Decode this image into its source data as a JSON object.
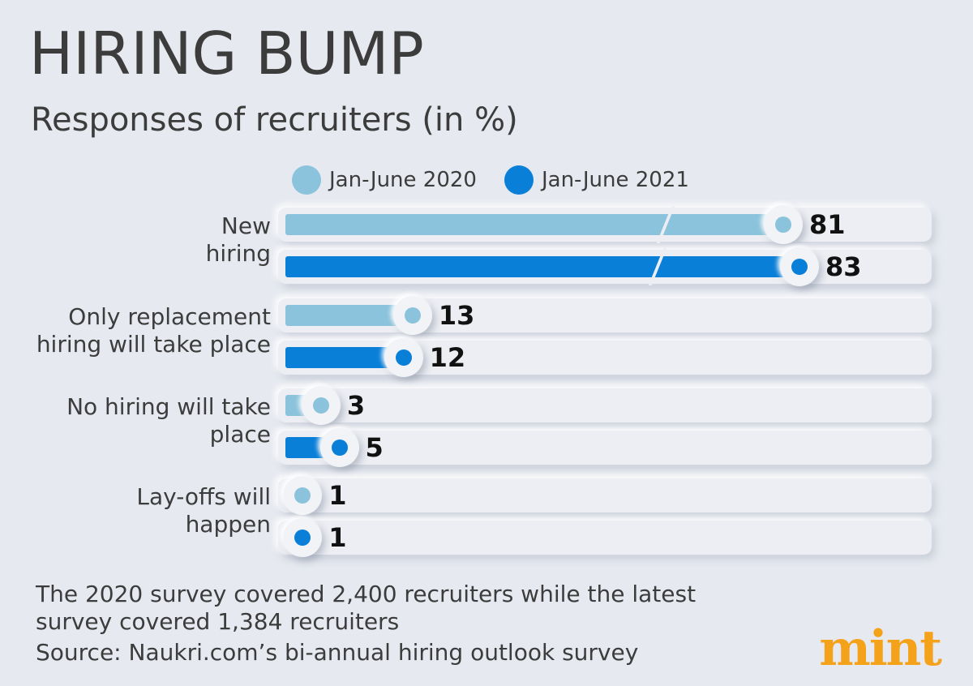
{
  "header": {
    "title": "HIRING BUMP",
    "subtitle": "Responses of recruiters (in %)"
  },
  "colors": {
    "series_2020": "#8cc3dc",
    "series_2021": "#0a7fd8",
    "background": "#e6e9f0"
  },
  "chart_data": {
    "type": "bar",
    "orientation": "horizontal",
    "title": "HIRING BUMP",
    "subtitle": "Responses of recruiters (in %)",
    "categories": [
      "New\nhiring",
      "Only replacement\nhiring will take place",
      "No hiring will take\nplace",
      "Lay-offs will\nhappen"
    ],
    "category_lines": [
      [
        "New",
        "hiring"
      ],
      [
        "Only replacement",
        "hiring will take place"
      ],
      [
        "No hiring will take",
        "place"
      ],
      [
        "Lay-offs will",
        "happen"
      ]
    ],
    "series": [
      {
        "name": "Jan-June 2020",
        "values": [
          81,
          13,
          3,
          1
        ]
      },
      {
        "name": "Jan-June 2021",
        "values": [
          83,
          12,
          5,
          1
        ]
      }
    ],
    "legend": "top",
    "grid": false,
    "axis_break_on_first_category": true
  },
  "footer": {
    "note_line1": "The 2020 survey covered 2,400 recruiters while the latest",
    "note_line2": "survey covered 1,384 recruiters",
    "source": "Source: Naukri.com’s bi-annual hiring outlook survey",
    "logo": "mint"
  }
}
